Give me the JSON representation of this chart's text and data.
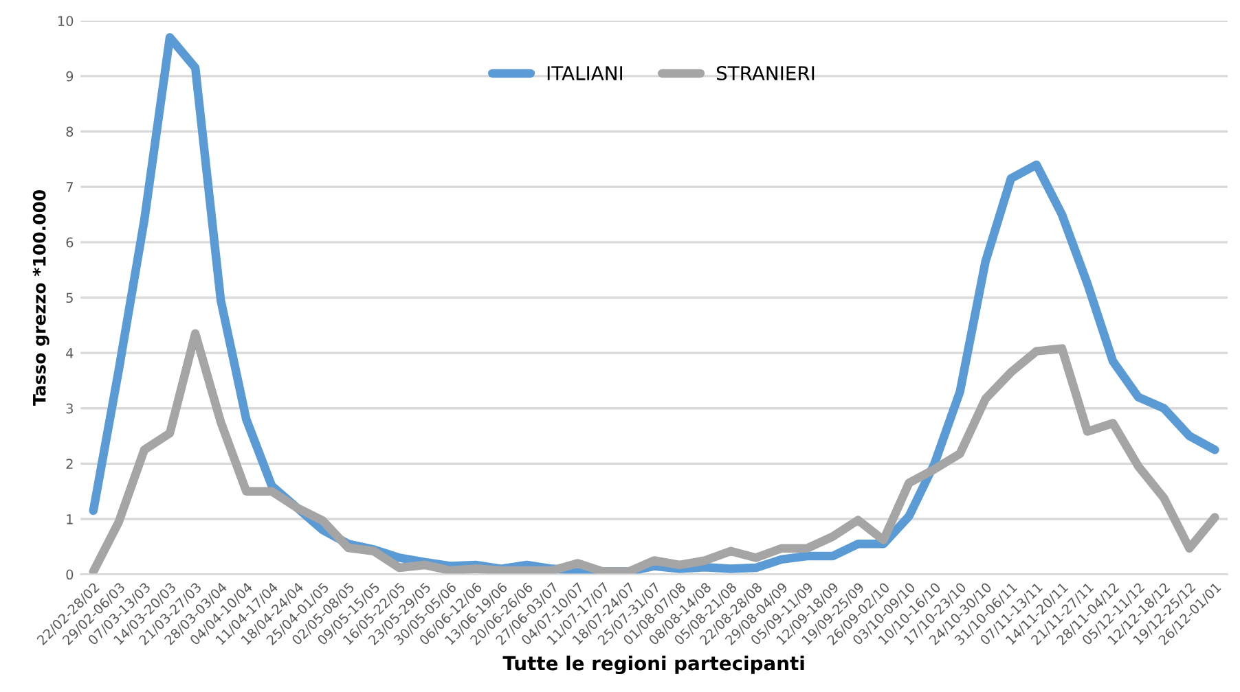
{
  "chart_data": {
    "type": "line",
    "xlabel": "Tutte le regioni partecipanti",
    "ylabel": "Tasso grezzo *100.000",
    "categories": [
      "22/02-28/02",
      "29/02-06/03",
      "07/03-13/03",
      "14/03-20/03",
      "21/03-27/03",
      "28/03-03/04",
      "04/04-10/04",
      "11/04-17/04",
      "18/04-24/04",
      "25/04-01/05",
      "02/05-08/05",
      "09/05-15/05",
      "16/05-22/05",
      "23/05-29/05",
      "30/05-05/06",
      "06/06-12/06",
      "13/06-19/06",
      "20/06-26/06",
      "27/06-03/07",
      "04/07-10/07",
      "11/07-17/07",
      "18/07-24/07",
      "25/07-31/07",
      "01/08-07/08",
      "08/08-14/08",
      "05/08-21/08",
      "22/08-28/08",
      "29/08-04/09",
      "05/09-11/09",
      "12/09-18/09",
      "19/09-25/09",
      "26/09-02/10",
      "03/10-09/10",
      "10/10-16/10",
      "17/10-23/10",
      "24/10-30/10",
      "31/10-06/11",
      "07/11-13/11",
      "14/11-20/11",
      "21/11-27/11",
      "28/11-04/12",
      "05/12-11/12",
      "12/12-18/12",
      "19/12-25/12",
      "26/12-01/01"
    ],
    "series": [
      {
        "name": "ITALIANI",
        "color": "#5b9bd5",
        "values": [
          1.15,
          3.7,
          6.4,
          9.7,
          9.15,
          4.95,
          2.8,
          1.6,
          1.2,
          0.8,
          0.55,
          0.45,
          0.3,
          0.22,
          0.15,
          0.17,
          0.1,
          0.17,
          0.1,
          0.07,
          0.05,
          0.05,
          0.15,
          0.1,
          0.13,
          0.1,
          0.12,
          0.27,
          0.33,
          0.33,
          0.55,
          0.55,
          1.05,
          2.0,
          3.3,
          5.65,
          7.15,
          7.4,
          6.5,
          5.25,
          3.85,
          3.2,
          3.0,
          2.5,
          2.25
        ]
      },
      {
        "name": "STRANIERI",
        "color": "#a5a5a5",
        "values": [
          0.05,
          0.95,
          2.25,
          2.55,
          4.35,
          2.75,
          1.5,
          1.5,
          1.2,
          0.97,
          0.48,
          0.42,
          0.12,
          0.17,
          0.07,
          0.1,
          0.07,
          0.07,
          0.07,
          0.2,
          0.05,
          0.05,
          0.25,
          0.17,
          0.25,
          0.42,
          0.3,
          0.47,
          0.47,
          0.68,
          0.98,
          0.62,
          1.65,
          1.9,
          2.18,
          3.17,
          3.65,
          4.03,
          4.08,
          2.58,
          2.73,
          1.95,
          1.38,
          0.47,
          1.03
        ]
      }
    ],
    "ylim": [
      0,
      10
    ],
    "yticks": [
      0,
      1,
      2,
      3,
      4,
      5,
      6,
      7,
      8,
      9,
      10
    ],
    "grid": "y",
    "legend": "top",
    "marker": "none",
    "line_style": "solid"
  }
}
